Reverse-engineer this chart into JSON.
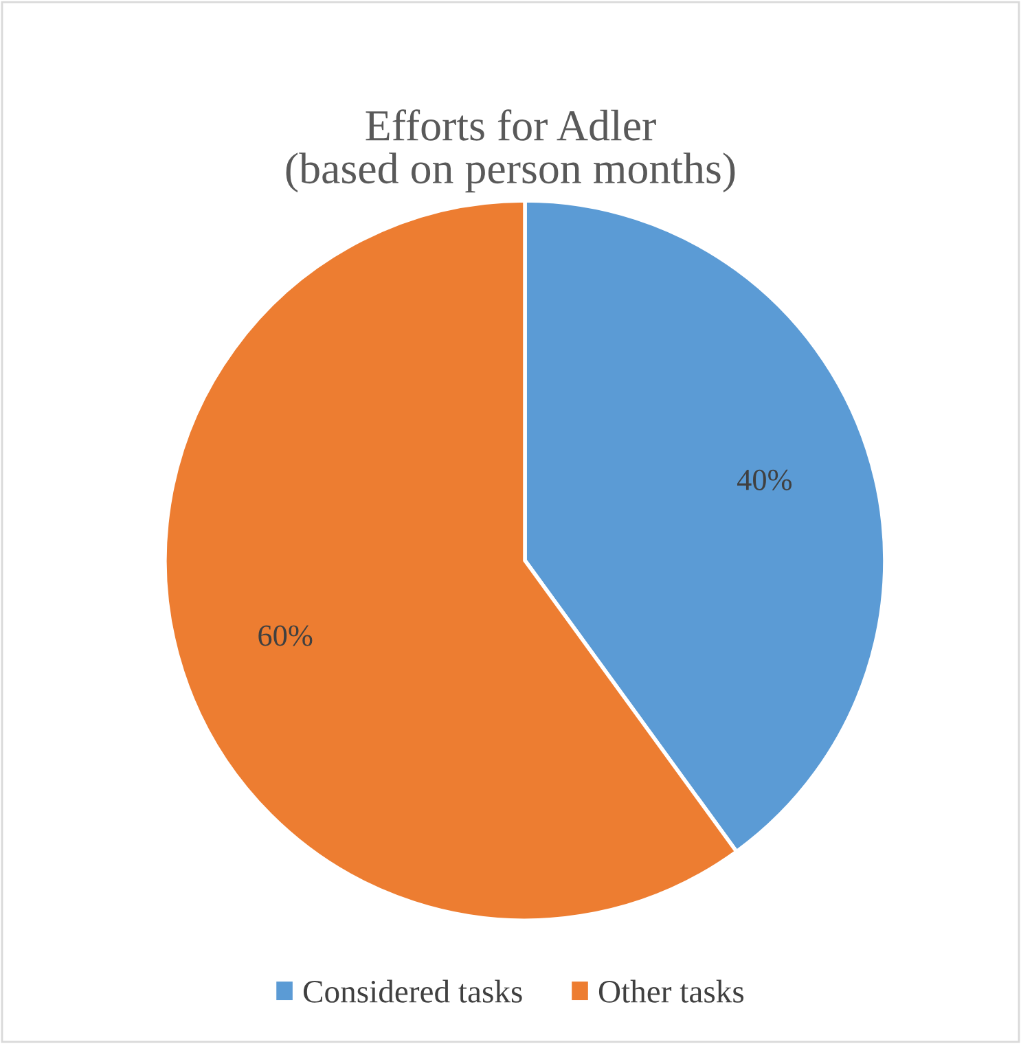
{
  "chart_data": {
    "type": "pie",
    "title": "Efforts for Adler\n(based on person months)",
    "categories": [
      "Considered tasks",
      "Other tasks"
    ],
    "values": [
      40,
      60
    ],
    "colors": [
      "#5b9bd5",
      "#ed7d31"
    ],
    "value_labels": [
      "40%",
      "60%"
    ],
    "legend": "bottom"
  }
}
